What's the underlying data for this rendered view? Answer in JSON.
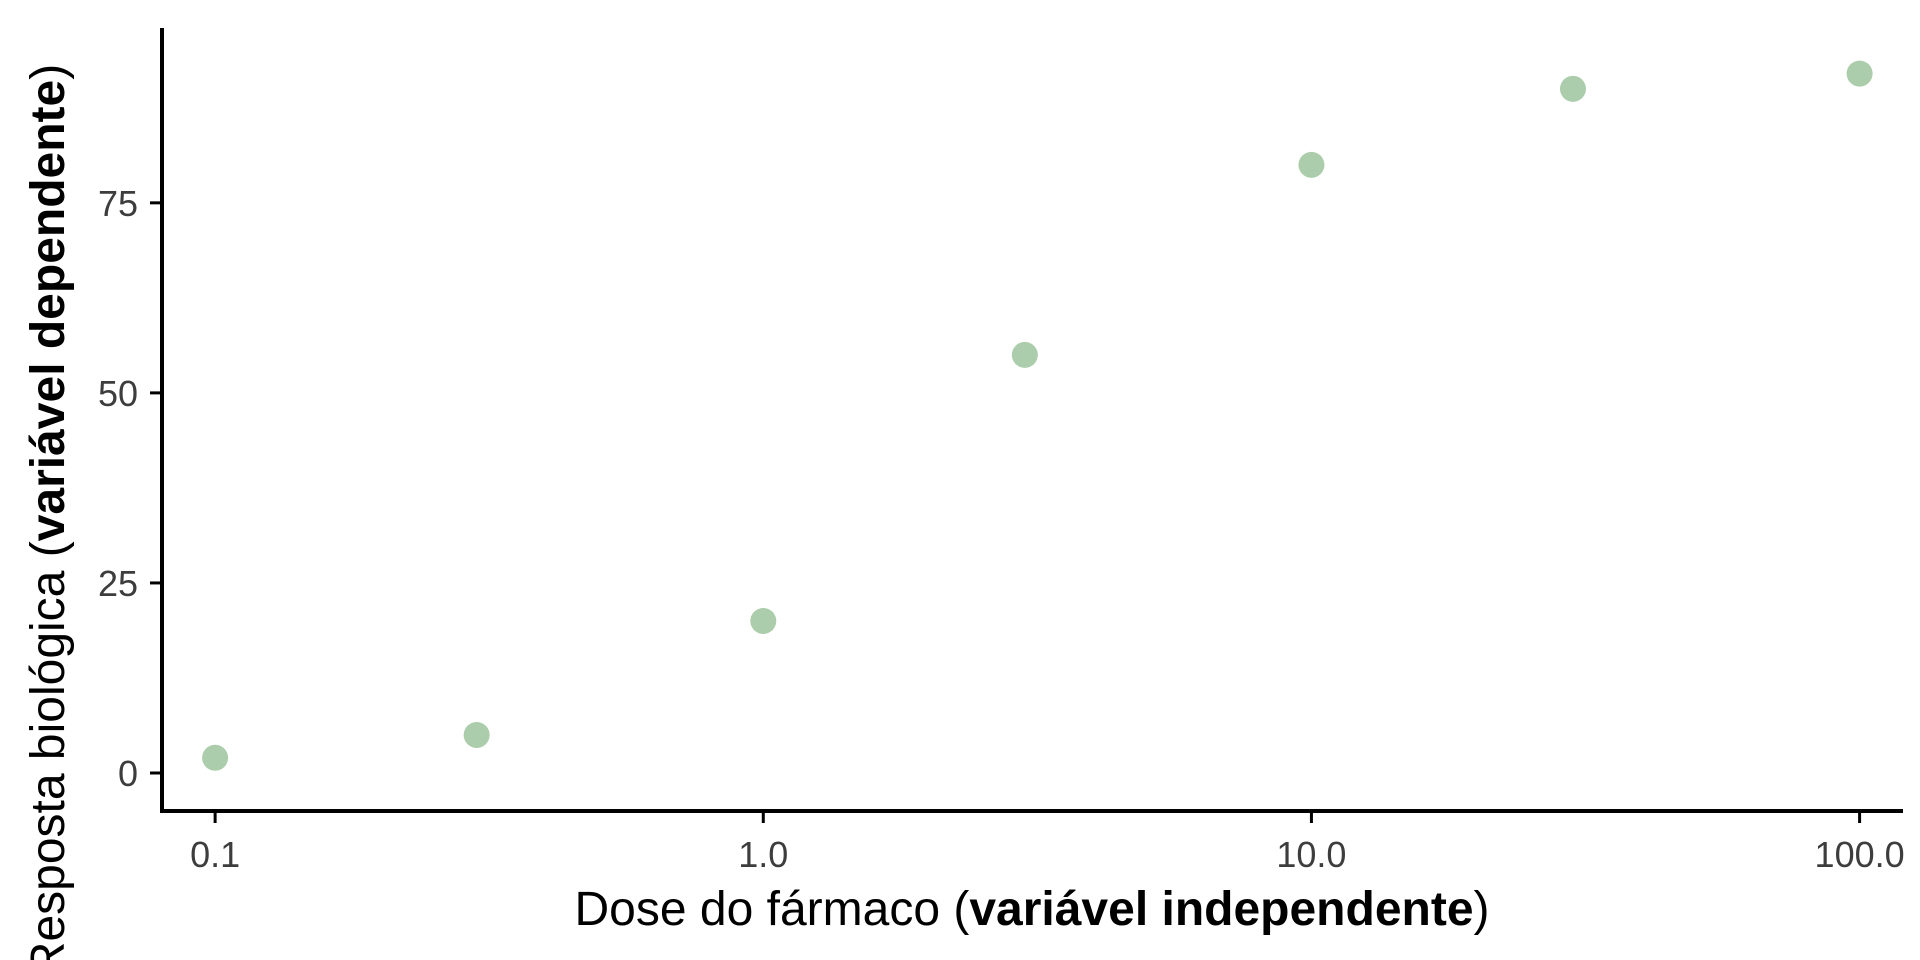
{
  "chart_data": {
    "type": "scatter",
    "title": "",
    "x_scale": "log10",
    "xlabel": {
      "prefix": "Dose do fármaco (",
      "bold": "variável independente",
      "suffix": ")"
    },
    "ylabel": {
      "prefix": "Resposta biológica (",
      "bold": "variável dependente",
      "suffix": ")"
    },
    "xlim": [
      0.08,
      120
    ],
    "ylim": [
      -5,
      98
    ],
    "x_ticks": [
      0.1,
      1,
      10,
      100
    ],
    "x_tick_labels": [
      "0.1",
      "1.0",
      "10.0",
      "100.0"
    ],
    "y_ticks": [
      0,
      25,
      50,
      75
    ],
    "y_tick_labels": [
      "0",
      "25",
      "50",
      "75"
    ],
    "grid": false,
    "legend": "none",
    "point_color": "#8fbc8f",
    "series": [
      {
        "points": [
          {
            "x": 0.1,
            "y": 2
          },
          {
            "x": 0.3,
            "y": 5
          },
          {
            "x": 1,
            "y": 20
          },
          {
            "x": 3,
            "y": 55
          },
          {
            "x": 10,
            "y": 80
          },
          {
            "x": 30,
            "y": 90
          },
          {
            "x": 100,
            "y": 92
          }
        ]
      }
    ]
  }
}
